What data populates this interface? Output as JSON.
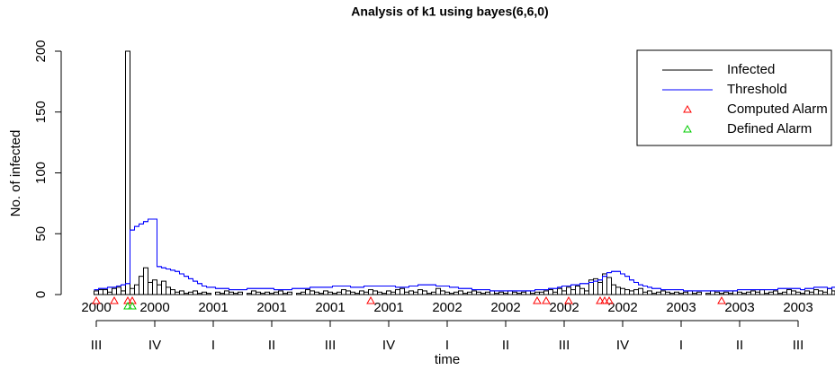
{
  "chart_data": {
    "type": "step",
    "title": "Analysis of k1 using bayes(6,6,0)",
    "y_label": "No. of infected",
    "x_label": "time",
    "series": [
      {
        "name": "Infected",
        "color": "#000000",
        "values": [
          3,
          4,
          4,
          2,
          5,
          6,
          3,
          200,
          5,
          8,
          15,
          22,
          10,
          12,
          8,
          11,
          6,
          4,
          2,
          3,
          1,
          2,
          3,
          1,
          2,
          1,
          0,
          2,
          1,
          3,
          2,
          1,
          2,
          0,
          1,
          3,
          2,
          1,
          2,
          1,
          2,
          3,
          1,
          2,
          0,
          1,
          2,
          4,
          3,
          2,
          1,
          3,
          2,
          1,
          2,
          4,
          3,
          2,
          1,
          3,
          2,
          4,
          3,
          2,
          1,
          3,
          2,
          4,
          5,
          2,
          3,
          2,
          4,
          3,
          1,
          2,
          5,
          3,
          2,
          1,
          2,
          3,
          1,
          2,
          3,
          2,
          1,
          2,
          3,
          1,
          2,
          1,
          3,
          2,
          1,
          2,
          3,
          1,
          2,
          2,
          3,
          4,
          2,
          5,
          3,
          6,
          4,
          7,
          5,
          3,
          12,
          13,
          10,
          17,
          14,
          8,
          6,
          5,
          4,
          3,
          4,
          5,
          2,
          3,
          1,
          2,
          3,
          2,
          1,
          2,
          1,
          2,
          3,
          1,
          2,
          0,
          1,
          3,
          2,
          1,
          2,
          1,
          3,
          2,
          1,
          2,
          3,
          2,
          4,
          1,
          2,
          3,
          1,
          2,
          4,
          3,
          2,
          1,
          3,
          2,
          4,
          3,
          2,
          5,
          3
        ]
      },
      {
        "name": "Threshold",
        "color": "#0000ff",
        "values": [
          4,
          5,
          5,
          6,
          6,
          7,
          8,
          9,
          53,
          56,
          58,
          60,
          62,
          62,
          23,
          22,
          21,
          20,
          19,
          17,
          15,
          13,
          11,
          9,
          7,
          6,
          6,
          5,
          5,
          5,
          4,
          4,
          4,
          4,
          5,
          5,
          5,
          5,
          5,
          5,
          4,
          4,
          4,
          4,
          5,
          5,
          5,
          5,
          6,
          6,
          6,
          6,
          6,
          7,
          7,
          7,
          7,
          6,
          6,
          6,
          7,
          7,
          7,
          7,
          7,
          7,
          7,
          6,
          6,
          6,
          7,
          7,
          8,
          8,
          8,
          8,
          7,
          7,
          7,
          6,
          6,
          5,
          5,
          5,
          4,
          4,
          4,
          4,
          3,
          3,
          3,
          3,
          3,
          3,
          3,
          3,
          3,
          3,
          4,
          4,
          4,
          5,
          5,
          6,
          7,
          7,
          8,
          8,
          9,
          9,
          10,
          11,
          12,
          15,
          18,
          19,
          19,
          17,
          15,
          12,
          10,
          8,
          7,
          6,
          5,
          5,
          4,
          4,
          4,
          4,
          4,
          3,
          3,
          3,
          3,
          3,
          3,
          3,
          3,
          3,
          3,
          3,
          3,
          4,
          4,
          4,
          4,
          4,
          4,
          4,
          4,
          4,
          5,
          5,
          5,
          5,
          5,
          4,
          5,
          5,
          6,
          6,
          6,
          5,
          6
        ]
      }
    ],
    "alarms": [
      {
        "name": "Computed Alarm",
        "color": "#ff0000",
        "x": [
          0,
          4,
          7,
          8,
          61,
          98,
          100,
          105,
          112,
          113,
          114,
          139
        ]
      },
      {
        "name": "Defined Alarm",
        "color": "#00cc00",
        "x": [
          7,
          8
        ]
      }
    ],
    "xlim": [
      -7.8,
      164.2
    ],
    "ylim": [
      0,
      200
    ],
    "yticks": [
      0,
      50,
      100,
      150,
      200
    ],
    "xticks": [
      {
        "value": 0,
        "label": "2000"
      },
      {
        "value": 13,
        "label": "2000"
      },
      {
        "value": 26,
        "label": "2001"
      },
      {
        "value": 39,
        "label": "2001"
      },
      {
        "value": 52,
        "label": "2001"
      },
      {
        "value": 65,
        "label": "2001"
      },
      {
        "value": 78,
        "label": "2002"
      },
      {
        "value": 91,
        "label": "2002"
      },
      {
        "value": 104,
        "label": "2002"
      },
      {
        "value": 117,
        "label": "2002"
      },
      {
        "value": 130,
        "label": "2003"
      },
      {
        "value": 143,
        "label": "2003"
      },
      {
        "value": 156,
        "label": "2003"
      }
    ],
    "quarter_ticks": [
      {
        "value": 0,
        "label": "III"
      },
      {
        "value": 13,
        "label": "IV"
      },
      {
        "value": 26,
        "label": "I"
      },
      {
        "value": 39,
        "label": "II"
      },
      {
        "value": 52,
        "label": "III"
      },
      {
        "value": 65,
        "label": "IV"
      },
      {
        "value": 78,
        "label": "I"
      },
      {
        "value": 91,
        "label": "II"
      },
      {
        "value": 104,
        "label": "III"
      },
      {
        "value": 117,
        "label": "IV"
      },
      {
        "value": 130,
        "label": "I"
      },
      {
        "value": 143,
        "label": "II"
      },
      {
        "value": 156,
        "label": "III"
      }
    ],
    "legend": "top-right"
  }
}
